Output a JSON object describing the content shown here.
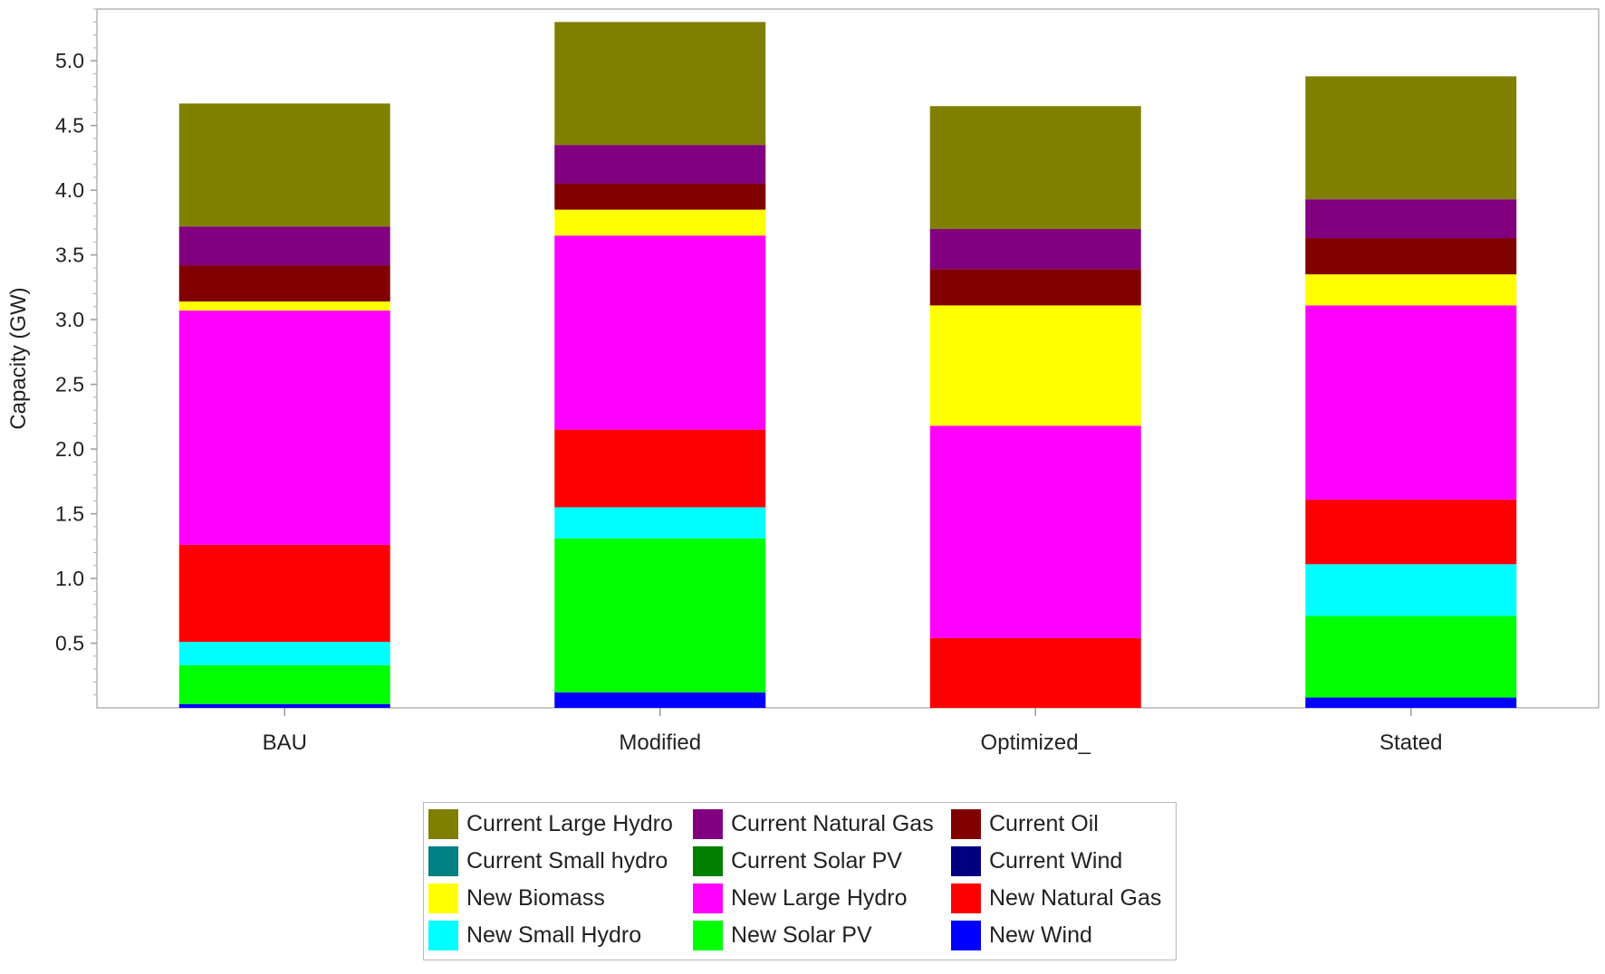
{
  "chart_data": {
    "type": "stacked-bar",
    "title": "",
    "xlabel": "",
    "ylabel": "Capacity (GW)",
    "ylim": [
      0,
      5.4
    ],
    "yticks": [
      0.5,
      1.0,
      1.5,
      2.0,
      2.5,
      3.0,
      3.5,
      4.0,
      4.5,
      5.0
    ],
    "ytick_labels": [
      "0.5",
      "1.0",
      "1.5",
      "2.0",
      "2.5",
      "3.0",
      "3.5",
      "4.0",
      "4.5",
      "5.0"
    ],
    "categories": [
      "BAU",
      "Modified",
      "Optimized_",
      "Stated"
    ],
    "legend_position": "bottom",
    "series": [
      {
        "name": "New Wind",
        "color": "#0000ff",
        "values": [
          0.03,
          0.12,
          0.0,
          0.08
        ]
      },
      {
        "name": "New Solar PV",
        "color": "#00ff00",
        "values": [
          0.3,
          1.19,
          0.0,
          0.63
        ]
      },
      {
        "name": "New Small Hydro",
        "color": "#00ffff",
        "values": [
          0.18,
          0.24,
          0.0,
          0.4
        ]
      },
      {
        "name": "New Natural Gas",
        "color": "#ff0000",
        "values": [
          0.75,
          0.6,
          0.54,
          0.5
        ]
      },
      {
        "name": "New Large Hydro",
        "color": "#ff00ff",
        "values": [
          1.81,
          1.5,
          1.64,
          1.5
        ]
      },
      {
        "name": "New Biomass",
        "color": "#ffff00",
        "values": [
          0.07,
          0.2,
          0.93,
          0.24
        ]
      },
      {
        "name": "Current Wind",
        "color": "#000080",
        "values": [
          0.0,
          0.0,
          0.0,
          0.0
        ]
      },
      {
        "name": "Current Solar PV",
        "color": "#008000",
        "values": [
          0.0,
          0.0,
          0.0,
          0.0
        ]
      },
      {
        "name": "Current Small hydro",
        "color": "#008080",
        "values": [
          0.0,
          0.0,
          0.0,
          0.0
        ]
      },
      {
        "name": "Current Oil",
        "color": "#800000",
        "values": [
          0.28,
          0.2,
          0.28,
          0.28
        ]
      },
      {
        "name": "Current Natural Gas",
        "color": "#800080",
        "values": [
          0.3,
          0.3,
          0.31,
          0.3
        ]
      },
      {
        "name": "Current Large Hydro",
        "color": "#808000",
        "values": [
          0.95,
          0.95,
          0.95,
          0.95
        ]
      }
    ],
    "legend_order": [
      "Current Large Hydro",
      "Current Natural Gas",
      "Current Oil",
      "Current Small hydro",
      "Current Solar PV",
      "Current Wind",
      "New Biomass",
      "New Large Hydro",
      "New Natural Gas",
      "New Small Hydro",
      "New Solar PV",
      "New Wind"
    ]
  }
}
